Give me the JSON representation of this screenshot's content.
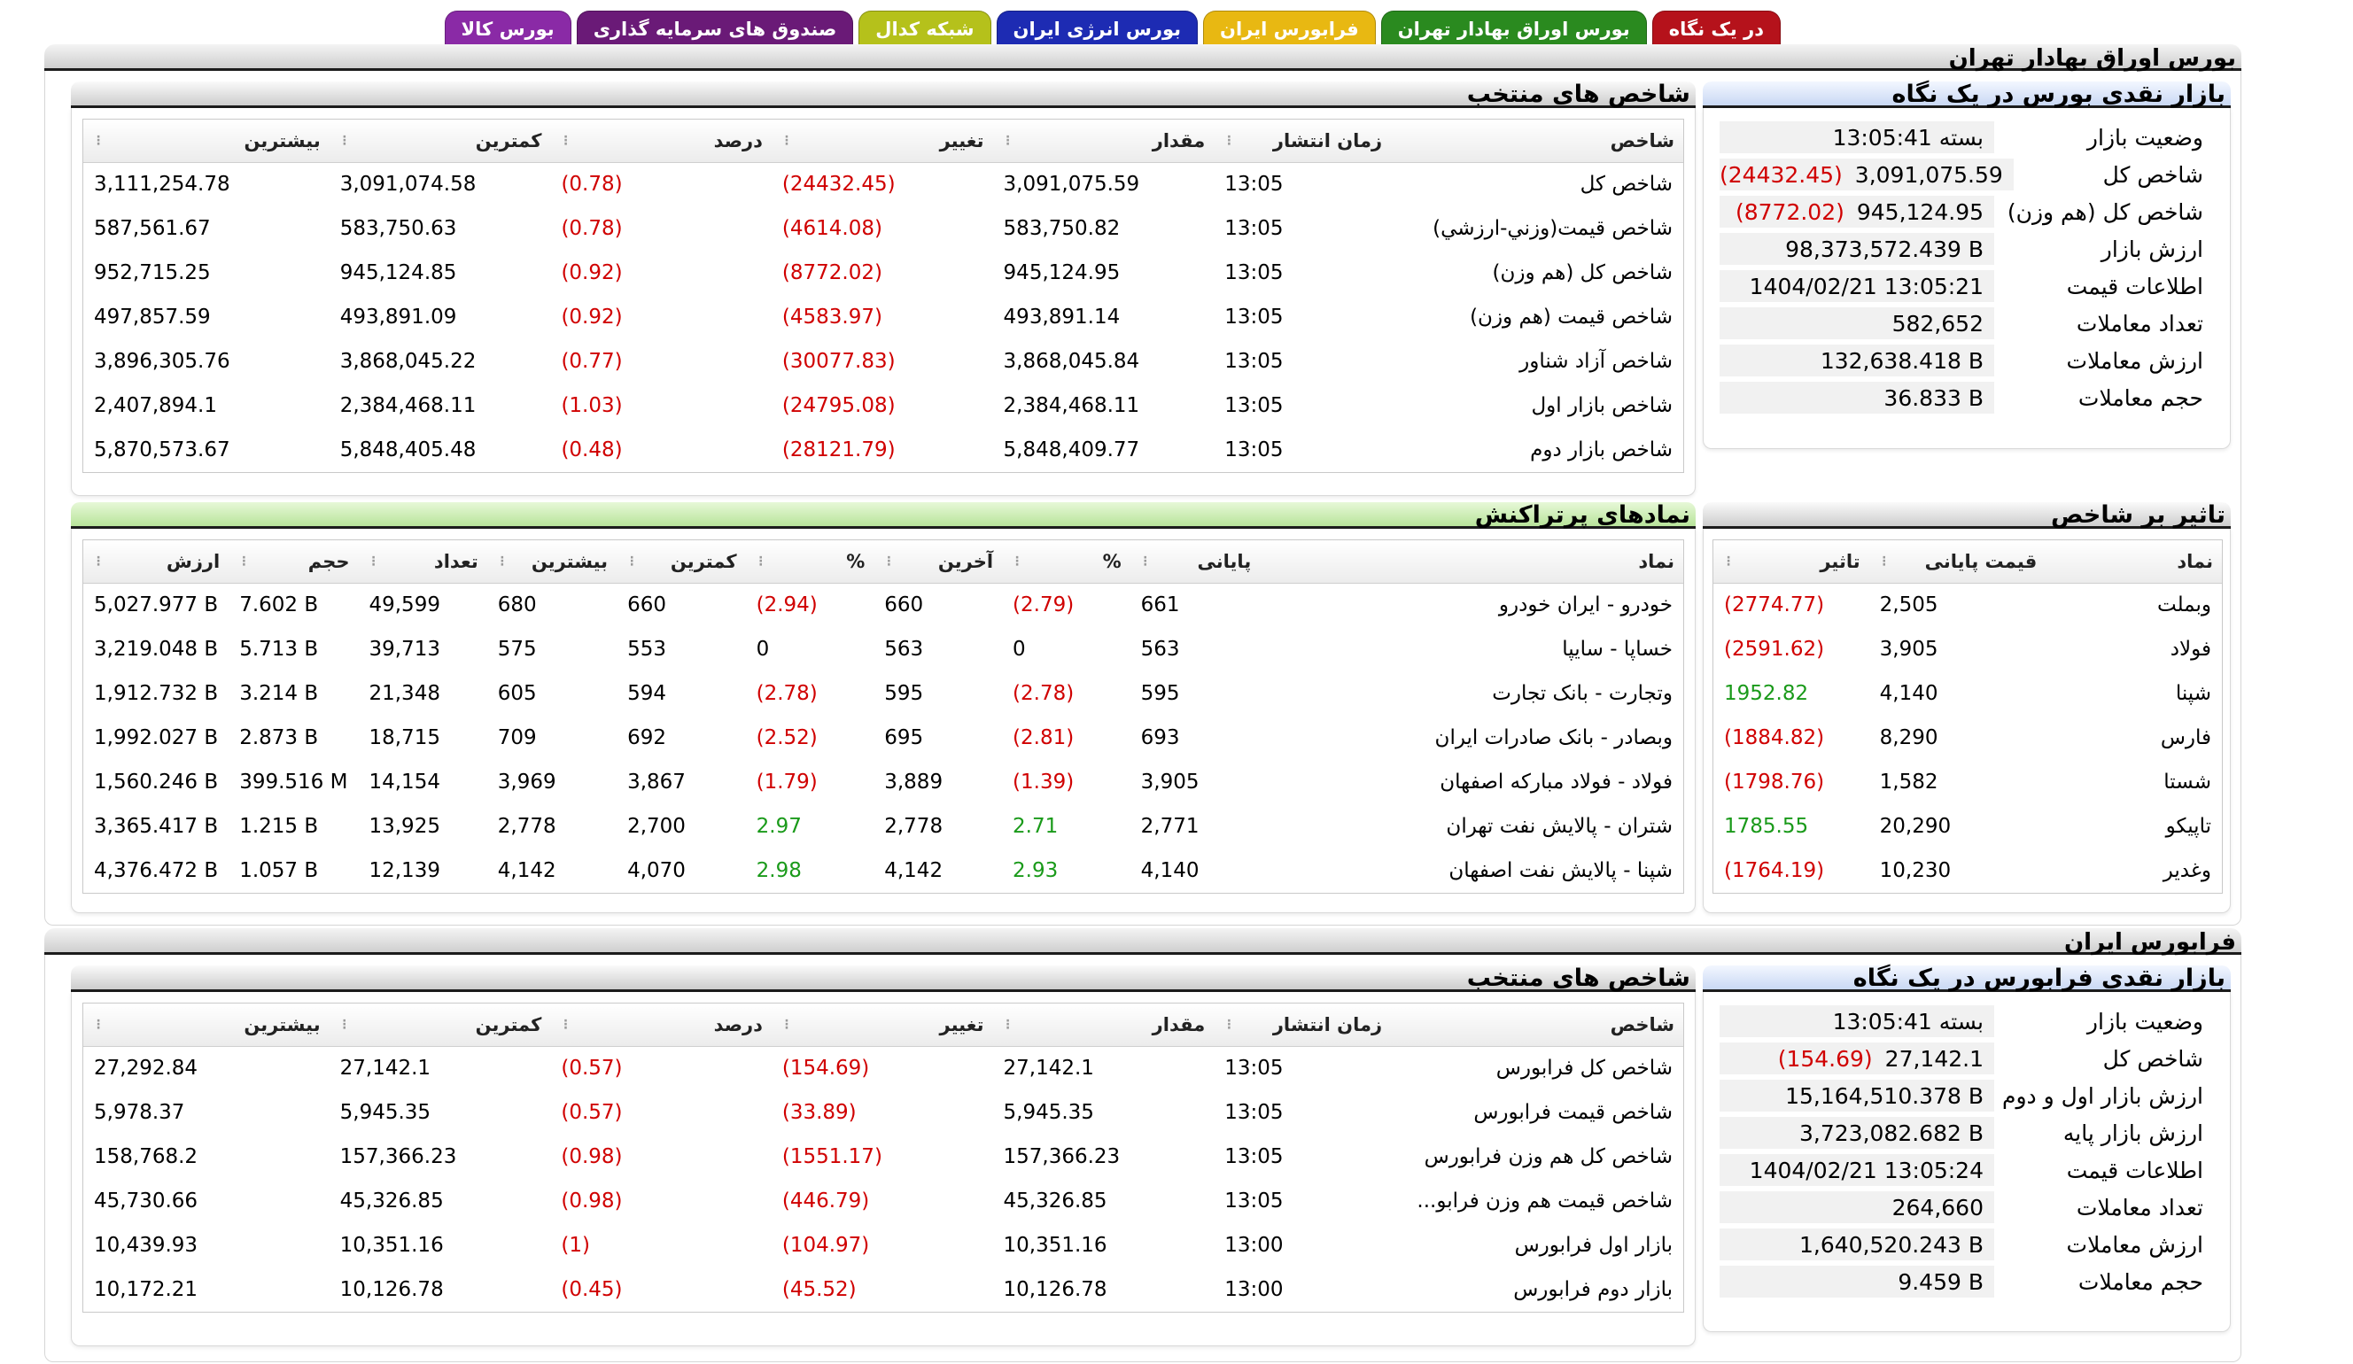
{
  "tabs": [
    {
      "label": "در یک نگاه",
      "color": "#b5121b"
    },
    {
      "label": "بورس اوراق بهادار تهران",
      "color": "#2a8a1f"
    },
    {
      "label": "فرابورس ایران",
      "color": "#e8b812"
    },
    {
      "label": "بورس انرژی ایران",
      "color": "#1d2bb3"
    },
    {
      "label": "شبکه کدال",
      "color": "#b5c11b"
    },
    {
      "label": "صندوق های سرمایه گذاری",
      "color": "#6a1a77"
    },
    {
      "label": "بورس کالا",
      "color": "#8a2aa6"
    }
  ],
  "tse": {
    "section_title": "بورس اوراق بهادار تهران",
    "summary": {
      "title": "بازار نقدی بورس در یک نگاه",
      "rows": [
        {
          "label": "وضعیت بازار",
          "value": "بسته 13:05:41",
          "change": ""
        },
        {
          "label": "شاخص کل",
          "value": "3,091,075.59",
          "change": "(24432.45)"
        },
        {
          "label": "شاخص کل (هم وزن)",
          "value": "945,124.95",
          "change": "(8772.02)"
        },
        {
          "label": "ارزش بازار",
          "value": "98,373,572.439 B",
          "change": ""
        },
        {
          "label": "اطلاعات قیمت",
          "value": "1404/02/21 13:05:21",
          "change": ""
        },
        {
          "label": "تعداد معاملات",
          "value": "582,652",
          "change": ""
        },
        {
          "label": "ارزش معاملات",
          "value": "132,638.418 B",
          "change": ""
        },
        {
          "label": "حجم معاملات",
          "value": "36.833 B",
          "change": ""
        }
      ]
    },
    "indices": {
      "title": "شاخص های منتخب",
      "headers": [
        "شاخص",
        "زمان انتشار",
        "مقدار",
        "تغییر",
        "درصد",
        "کمترین",
        "بیشترین"
      ],
      "rows": [
        [
          "شاخص کل",
          "13:05",
          "3,091,075.59",
          "(24432.45)",
          "(0.78)",
          "3,091,074.58",
          "3,111,254.78"
        ],
        [
          "شاخص قيمت(وزني-ارزشي)",
          "13:05",
          "583,750.82",
          "(4614.08)",
          "(0.78)",
          "583,750.63",
          "587,561.67"
        ],
        [
          "شاخص کل (هم وزن)",
          "13:05",
          "945,124.95",
          "(8772.02)",
          "(0.92)",
          "945,124.85",
          "952,715.25"
        ],
        [
          "شاخص قیمت (هم وزن)",
          "13:05",
          "493,891.14",
          "(4583.97)",
          "(0.92)",
          "493,891.09",
          "497,857.59"
        ],
        [
          "شاخص آزاد شناور",
          "13:05",
          "3,868,045.84",
          "(30077.83)",
          "(0.77)",
          "3,868,045.22",
          "3,896,305.76"
        ],
        [
          "شاخص بازار اول",
          "13:05",
          "2,384,468.11",
          "(24795.08)",
          "(1.03)",
          "2,384,468.11",
          "2,407,894.1"
        ],
        [
          "شاخص بازار دوم",
          "13:05",
          "5,848,409.77",
          "(28121.79)",
          "(0.48)",
          "5,848,405.48",
          "5,870,573.67"
        ]
      ]
    },
    "influence": {
      "title": "تاثیر بر شاخص",
      "headers": [
        "نماد",
        "قیمت پایانی",
        "تاثیر"
      ],
      "rows": [
        [
          "وبملت",
          "2,505",
          "(2774.77)"
        ],
        [
          "فولاد",
          "3,905",
          "(2591.62)"
        ],
        [
          "شپنا",
          "4,140",
          "1952.82"
        ],
        [
          "فارس",
          "8,290",
          "(1884.82)"
        ],
        [
          "شستا",
          "1,582",
          "(1798.76)"
        ],
        [
          "تاپیکو",
          "20,290",
          "1785.55"
        ],
        [
          "وغدیر",
          "10,230",
          "(1764.19)"
        ]
      ]
    },
    "active": {
      "title": "نمادهای پرتراکنش",
      "headers": [
        "نماد",
        "پایانی",
        "%",
        "آخرین",
        "%",
        "کمترین",
        "بیشترین",
        "تعداد",
        "حجم",
        "ارزش"
      ],
      "rows": [
        [
          "خودرو - ایران خودرو",
          "661",
          "(2.79)",
          "660",
          "(2.94)",
          "660",
          "680",
          "49,599",
          "7.602 B",
          "5,027.977 B"
        ],
        [
          "خساپا - سایپا",
          "563",
          "0",
          "563",
          "0",
          "553",
          "575",
          "39,713",
          "5.713 B",
          "3,219.048 B"
        ],
        [
          "وتجارت - بانک تجارت",
          "595",
          "(2.78)",
          "595",
          "(2.78)",
          "594",
          "605",
          "21,348",
          "3.214 B",
          "1,912.732 B"
        ],
        [
          "وبصادر - بانک صادرات ایران",
          "693",
          "(2.81)",
          "695",
          "(2.52)",
          "692",
          "709",
          "18,715",
          "2.873 B",
          "1,992.027 B"
        ],
        [
          "فولاد - فولاد مبارکه اصفهان",
          "3,905",
          "(1.39)",
          "3,889",
          "(1.79)",
          "3,867",
          "3,969",
          "14,154",
          "399.516 M",
          "1,560.246 B"
        ],
        [
          "شتران - پالایش نفت تهران",
          "2,771",
          "2.71",
          "2,778",
          "2.97",
          "2,700",
          "2,778",
          "13,925",
          "1.215 B",
          "3,365.417 B"
        ],
        [
          "شپنا - پالایش نفت اصفهان",
          "4,140",
          "2.93",
          "4,142",
          "2.98",
          "4,070",
          "4,142",
          "12,139",
          "1.057 B",
          "4,376.472 B"
        ]
      ]
    }
  },
  "ifb": {
    "section_title": "فرابورس ایران",
    "summary": {
      "title": "بازار نقدی فرابورس در یک نگاه",
      "rows": [
        {
          "label": "وضعیت بازار",
          "value": "بسته 13:05:41",
          "change": ""
        },
        {
          "label": "شاخص کل",
          "value": "27,142.1",
          "change": "(154.69)"
        },
        {
          "label": "ارزش بازار اول و دوم",
          "value": "15,164,510.378 B",
          "change": ""
        },
        {
          "label": "ارزش بازار پایه",
          "value": "3,723,082.682 B",
          "change": ""
        },
        {
          "label": "اطلاعات قیمت",
          "value": "1404/02/21 13:05:24",
          "change": ""
        },
        {
          "label": "تعداد معاملات",
          "value": "264,660",
          "change": ""
        },
        {
          "label": "ارزش معاملات",
          "value": "1,640,520.243 B",
          "change": ""
        },
        {
          "label": "حجم معاملات",
          "value": "9.459 B",
          "change": ""
        }
      ]
    },
    "indices": {
      "title": "شاخص های منتخب",
      "headers": [
        "شاخص",
        "زمان انتشار",
        "مقدار",
        "تغییر",
        "درصد",
        "کمترین",
        "بیشترین"
      ],
      "rows": [
        [
          "شاخص کل فرابورس",
          "13:05",
          "27,142.1",
          "(154.69)",
          "(0.57)",
          "27,142.1",
          "27,292.84"
        ],
        [
          "شاخص قیمت فرابورس",
          "13:05",
          "5,945.35",
          "(33.89)",
          "(0.57)",
          "5,945.35",
          "5,978.37"
        ],
        [
          "شاخص کل هم وزن فرابورس",
          "13:05",
          "157,366.23",
          "(1551.17)",
          "(0.98)",
          "157,366.23",
          "158,768.2"
        ],
        [
          "شاخص قیمت هم وزن فرابو...",
          "13:05",
          "45,326.85",
          "(446.79)",
          "(0.98)",
          "45,326.85",
          "45,730.66"
        ],
        [
          "بازار اول فرابورس",
          "13:00",
          "10,351.16",
          "(104.97)",
          "(1)",
          "10,351.16",
          "10,439.93"
        ],
        [
          "بازار دوم فرابورس",
          "13:00",
          "10,126.78",
          "(45.52)",
          "(0.45)",
          "10,126.78",
          "10,172.21"
        ]
      ]
    }
  }
}
